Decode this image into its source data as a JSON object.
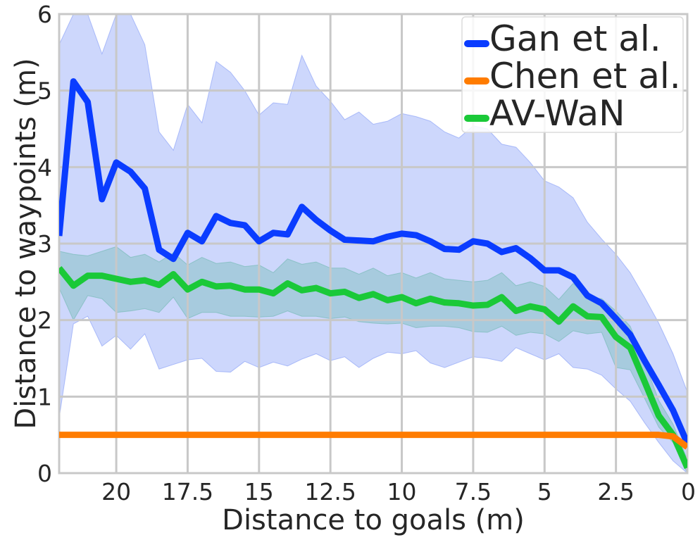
{
  "chart_data": {
    "type": "line",
    "xlabel": "Distance to goals (m)",
    "ylabel": "Distance to waypoints (m)",
    "xlim": [
      22.0,
      0
    ],
    "ylim": [
      0,
      6
    ],
    "xticks": [
      20,
      17.5,
      15,
      12.5,
      10,
      7.5,
      5,
      2.5,
      0
    ],
    "yticks": [
      0,
      1,
      2,
      3,
      4,
      5,
      6
    ],
    "grid": true,
    "legend_position": "top-right",
    "series": [
      {
        "name": "Gan et al.",
        "color": "#0a3cff",
        "band_color": "#6f8cf6",
        "x": [
          22.0,
          21.5,
          21.0,
          20.5,
          20.0,
          19.5,
          19.0,
          18.5,
          18.0,
          17.5,
          17.0,
          16.5,
          16.0,
          15.5,
          15.0,
          14.5,
          14.0,
          13.5,
          13.0,
          12.5,
          12.0,
          11.5,
          11.0,
          10.5,
          10.0,
          9.5,
          9.0,
          8.5,
          8.0,
          7.5,
          7.0,
          6.5,
          6.0,
          5.5,
          5.0,
          4.5,
          4.0,
          3.5,
          3.0,
          2.5,
          2.0,
          1.5,
          1.0,
          0.5,
          0.0
        ],
        "values": [
          3.1,
          5.12,
          4.85,
          3.58,
          4.06,
          3.94,
          3.72,
          2.92,
          2.8,
          3.14,
          3.03,
          3.36,
          3.27,
          3.24,
          3.03,
          3.14,
          3.12,
          3.48,
          3.31,
          3.17,
          3.05,
          3.04,
          3.03,
          3.09,
          3.13,
          3.11,
          3.03,
          2.93,
          2.92,
          3.03,
          3.0,
          2.89,
          2.94,
          2.81,
          2.65,
          2.65,
          2.56,
          2.32,
          2.22,
          2.02,
          1.81,
          1.47,
          1.15,
          0.82,
          0.39
        ],
        "band_lower": [
          0.72,
          1.95,
          2.05,
          1.66,
          1.8,
          1.62,
          1.82,
          1.36,
          1.42,
          1.48,
          1.5,
          1.33,
          1.32,
          1.46,
          1.38,
          1.45,
          1.4,
          1.49,
          1.56,
          1.47,
          1.52,
          1.38,
          1.5,
          1.58,
          1.56,
          1.6,
          1.44,
          1.38,
          1.45,
          1.52,
          1.5,
          1.46,
          1.64,
          1.56,
          1.48,
          1.56,
          1.38,
          1.36,
          1.28,
          1.1,
          0.94,
          0.66,
          0.4,
          0.16,
          0.0
        ],
        "band_upper": [
          5.6,
          6.0,
          6.0,
          5.48,
          6.0,
          6.0,
          5.6,
          4.46,
          4.22,
          4.82,
          4.58,
          5.38,
          5.24,
          5.0,
          4.68,
          4.84,
          4.82,
          5.46,
          5.06,
          4.86,
          4.62,
          4.72,
          4.56,
          4.6,
          4.7,
          4.66,
          4.6,
          4.46,
          4.38,
          4.54,
          4.5,
          4.3,
          4.26,
          4.06,
          3.82,
          3.74,
          3.6,
          3.28,
          3.06,
          2.86,
          2.62,
          2.3,
          1.96,
          1.56,
          1.06
        ]
      },
      {
        "name": "Chen et al.",
        "color": "#ff7c00",
        "x": [
          22.0,
          1.0,
          0.5,
          0.0
        ],
        "values": [
          0.5,
          0.5,
          0.48,
          0.34
        ]
      },
      {
        "name": "AV-WaN",
        "color": "#1ac938",
        "band_color": "#62b4a5",
        "x": [
          22.0,
          21.5,
          21.0,
          20.5,
          20.0,
          19.5,
          19.0,
          18.5,
          18.0,
          17.5,
          17.0,
          16.5,
          16.0,
          15.5,
          15.0,
          14.5,
          14.0,
          13.5,
          13.0,
          12.5,
          12.0,
          11.5,
          11.0,
          10.5,
          10.0,
          9.5,
          9.0,
          8.5,
          8.0,
          7.5,
          7.0,
          6.5,
          6.0,
          5.5,
          5.0,
          4.5,
          4.0,
          3.5,
          3.0,
          2.5,
          2.0,
          1.5,
          1.0,
          0.5,
          0.0
        ],
        "values": [
          2.68,
          2.45,
          2.58,
          2.58,
          2.54,
          2.5,
          2.52,
          2.46,
          2.6,
          2.4,
          2.5,
          2.44,
          2.45,
          2.4,
          2.4,
          2.35,
          2.48,
          2.39,
          2.42,
          2.35,
          2.37,
          2.29,
          2.34,
          2.26,
          2.3,
          2.22,
          2.28,
          2.23,
          2.22,
          2.19,
          2.2,
          2.3,
          2.12,
          2.18,
          2.14,
          1.98,
          2.18,
          2.05,
          2.04,
          1.78,
          1.64,
          1.2,
          0.75,
          0.5,
          0.07
        ],
        "band_lower": [
          2.42,
          2.0,
          2.32,
          2.28,
          2.1,
          2.12,
          2.15,
          2.1,
          2.3,
          2.02,
          2.1,
          2.1,
          2.05,
          2.05,
          2.04,
          2.05,
          2.12,
          2.05,
          2.05,
          2.02,
          2.04,
          1.98,
          1.96,
          1.95,
          1.96,
          1.9,
          1.92,
          1.92,
          1.9,
          1.85,
          1.84,
          1.92,
          1.8,
          1.84,
          1.82,
          1.72,
          1.86,
          1.82,
          1.84,
          1.38,
          1.35,
          0.98,
          0.6,
          0.4,
          0.0
        ],
        "band_upper": [
          2.9,
          2.86,
          2.84,
          2.9,
          2.96,
          2.82,
          2.86,
          2.76,
          2.88,
          2.72,
          2.82,
          2.74,
          2.76,
          2.7,
          2.72,
          2.62,
          2.8,
          2.73,
          2.76,
          2.68,
          2.68,
          2.6,
          2.68,
          2.58,
          2.62,
          2.55,
          2.62,
          2.54,
          2.52,
          2.5,
          2.52,
          2.62,
          2.45,
          2.5,
          2.44,
          2.27,
          2.48,
          2.3,
          2.28,
          2.12,
          1.92,
          1.45,
          0.95,
          0.64,
          0.18
        ]
      }
    ]
  }
}
